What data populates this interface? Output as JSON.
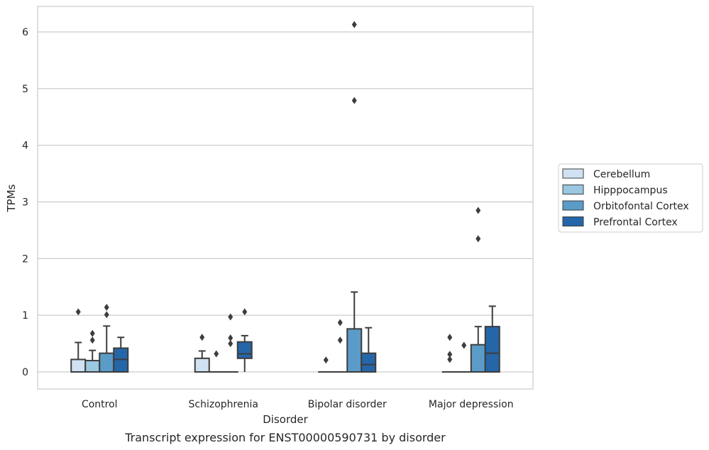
{
  "chart_data": {
    "type": "box",
    "title": "",
    "caption": "Transcript expression for ENST00000590731 by disorder",
    "xlabel": "Disorder",
    "ylabel": "TPMs",
    "ylim": [
      -0.3,
      6.45
    ],
    "yticks": [
      0,
      1,
      2,
      3,
      4,
      5,
      6
    ],
    "grid": "horizontal",
    "legend_position": "right",
    "categories": [
      "Control",
      "Schizophrenia",
      "Bipolar disorder",
      "Major depression"
    ],
    "series": [
      {
        "name": "Cerebellum",
        "color": "#d0e1f2",
        "boxes": [
          {
            "min": 0,
            "q1": 0,
            "median": 0,
            "q3": 0.22,
            "max": 0.52,
            "outliers": [
              1.06
            ]
          },
          {
            "min": 0,
            "q1": 0,
            "median": 0,
            "q3": 0.24,
            "max": 0.37,
            "outliers": [
              0.61
            ]
          },
          {
            "min": 0,
            "q1": 0,
            "median": 0,
            "q3": 0,
            "max": 0,
            "outliers": [
              0.21
            ]
          },
          {
            "min": 0,
            "q1": 0,
            "median": 0,
            "q3": 0,
            "max": 0,
            "outliers": [
              0.61,
              0.31,
              0.22
            ]
          }
        ]
      },
      {
        "name": "Hipppocampus",
        "color": "#9ac8e0",
        "boxes": [
          {
            "min": 0,
            "q1": 0,
            "median": 0,
            "q3": 0.2,
            "max": 0.38,
            "outliers": [
              0.68,
              0.56
            ]
          },
          {
            "min": 0,
            "q1": 0,
            "median": 0,
            "q3": 0,
            "max": 0,
            "outliers": [
              0.32
            ]
          },
          {
            "min": 0,
            "q1": 0,
            "median": 0,
            "q3": 0,
            "max": 0,
            "outliers": [
              0.87,
              0.56
            ]
          },
          {
            "min": 0,
            "q1": 0,
            "median": 0,
            "q3": 0,
            "max": 0,
            "outliers": [
              0.47
            ]
          }
        ]
      },
      {
        "name": "Orbitofontal Cortex",
        "color": "#5a9bc8",
        "boxes": [
          {
            "min": 0,
            "q1": 0,
            "median": 0,
            "q3": 0.33,
            "max": 0.81,
            "outliers": [
              1.14,
              1.01
            ]
          },
          {
            "min": 0,
            "q1": 0,
            "median": 0,
            "q3": 0,
            "max": 0,
            "outliers": [
              0.97,
              0.6,
              0.5
            ]
          },
          {
            "min": 0,
            "q1": 0,
            "median": 0,
            "q3": 0.76,
            "max": 1.41,
            "outliers": [
              6.13,
              4.79
            ]
          },
          {
            "min": 0,
            "q1": 0,
            "median": 0,
            "q3": 0.48,
            "max": 0.8,
            "outliers": [
              2.85,
              2.35
            ]
          }
        ]
      },
      {
        "name": "Prefrontal Cortex",
        "color": "#2566a8",
        "boxes": [
          {
            "min": 0,
            "q1": 0,
            "median": 0.22,
            "q3": 0.42,
            "max": 0.61,
            "outliers": []
          },
          {
            "min": 0,
            "q1": 0.24,
            "median": 0.32,
            "q3": 0.53,
            "max": 0.64,
            "outliers": [
              1.06
            ]
          },
          {
            "min": 0,
            "q1": 0,
            "median": 0.13,
            "q3": 0.33,
            "max": 0.78,
            "outliers": []
          },
          {
            "min": 0,
            "q1": 0,
            "median": 0.33,
            "q3": 0.8,
            "max": 1.16,
            "outliers": []
          }
        ]
      }
    ]
  }
}
